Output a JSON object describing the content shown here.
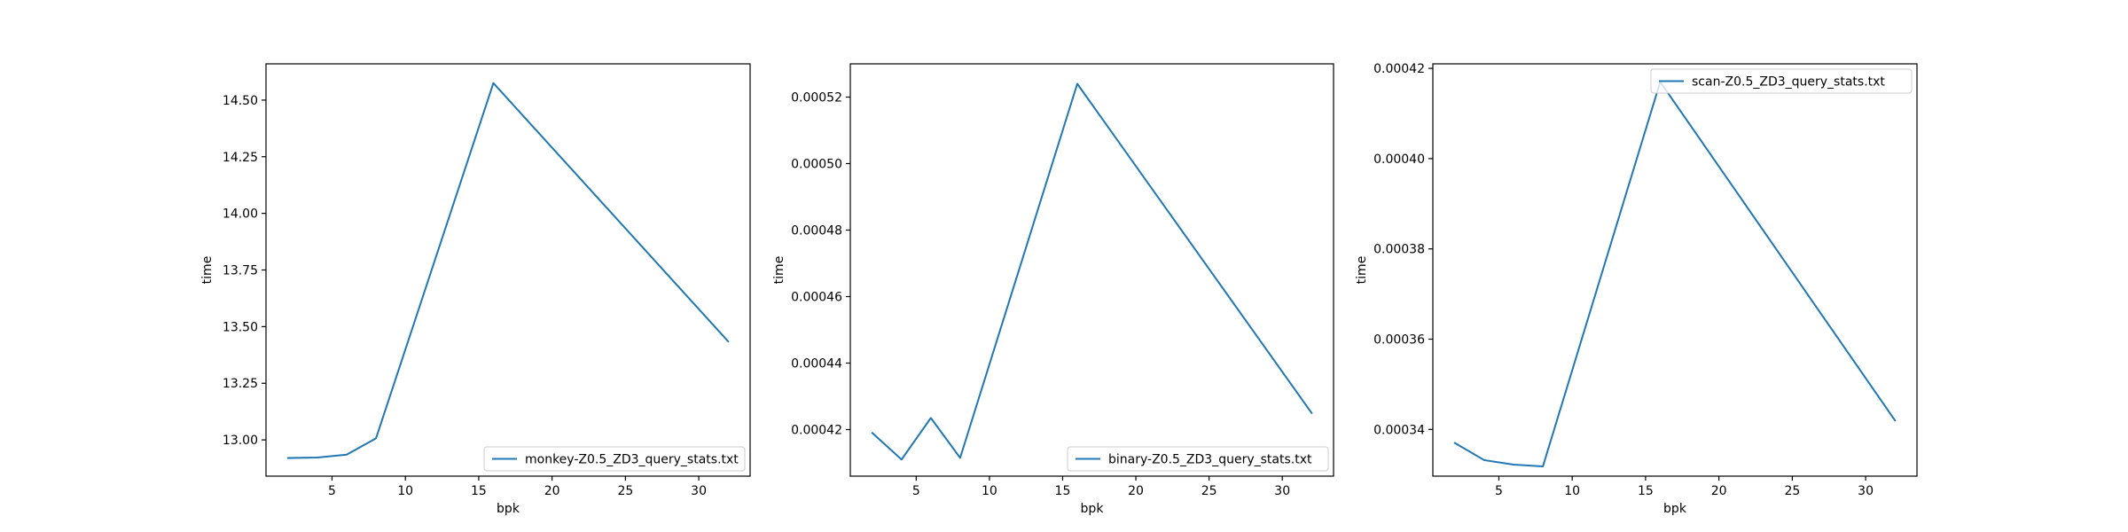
{
  "chart_data": [
    {
      "type": "line",
      "xlabel": "bpk",
      "ylabel": "time",
      "xlim": [
        0.5,
        33.5
      ],
      "ylim": [
        12.84,
        14.66
      ],
      "xticks": [
        5,
        10,
        15,
        20,
        25,
        30
      ],
      "xtick_labels": [
        "5",
        "10",
        "15",
        "20",
        "25",
        "30"
      ],
      "yticks": [
        13.0,
        13.25,
        13.5,
        13.75,
        14.0,
        14.25,
        14.5
      ],
      "ytick_labels": [
        "13.00",
        "13.25",
        "13.50",
        "13.75",
        "14.00",
        "14.25",
        "14.50"
      ],
      "legend_position": "lower right",
      "grid": false,
      "color": "#1f77b4",
      "series": [
        {
          "name": "monkey-Z0.5_ZD3_query_stats.txt",
          "x": [
            2,
            4,
            6,
            8,
            16,
            32
          ],
          "y": [
            12.92,
            12.922,
            12.935,
            13.007,
            14.575,
            13.435
          ]
        }
      ]
    },
    {
      "type": "line",
      "xlabel": "bpk",
      "ylabel": "time",
      "xlim": [
        0.5,
        33.5
      ],
      "ylim": [
        0.000406,
        0.00053
      ],
      "xticks": [
        5,
        10,
        15,
        20,
        25,
        30
      ],
      "xtick_labels": [
        "5",
        "10",
        "15",
        "20",
        "25",
        "30"
      ],
      "yticks": [
        0.00042,
        0.00044,
        0.00046,
        0.00048,
        0.0005,
        0.00052
      ],
      "ytick_labels": [
        "0.00042",
        "0.00044",
        "0.00046",
        "0.00048",
        "0.00050",
        "0.00052"
      ],
      "legend_position": "lower right",
      "grid": false,
      "color": "#1f77b4",
      "series": [
        {
          "name": "binary-Z0.5_ZD3_query_stats.txt",
          "x": [
            2,
            4,
            6,
            8,
            16,
            32
          ],
          "y": [
            0.000419,
            0.000411,
            0.0004235,
            0.0004115,
            0.000524,
            0.000425
          ]
        }
      ]
    },
    {
      "type": "line",
      "xlabel": "bpk",
      "ylabel": "time",
      "xlim": [
        0.5,
        33.5
      ],
      "ylim": [
        0.00032965,
        0.000421
      ],
      "xticks": [
        5,
        10,
        15,
        20,
        25,
        30
      ],
      "xtick_labels": [
        "5",
        "10",
        "15",
        "20",
        "25",
        "30"
      ],
      "yticks": [
        0.00034,
        0.00036,
        0.00038,
        0.0004,
        0.00042
      ],
      "ytick_labels": [
        "0.00034",
        "0.00036",
        "0.00038",
        "0.00040",
        "0.00042"
      ],
      "legend_position": "upper right",
      "grid": false,
      "color": "#1f77b4",
      "series": [
        {
          "name": "scan-Z0.5_ZD3_query_stats.txt",
          "x": [
            2,
            4,
            6,
            8,
            16,
            32
          ],
          "y": [
            0.000337,
            0.0003332,
            0.0003322,
            0.0003318,
            0.000417,
            0.000342
          ]
        }
      ]
    }
  ]
}
